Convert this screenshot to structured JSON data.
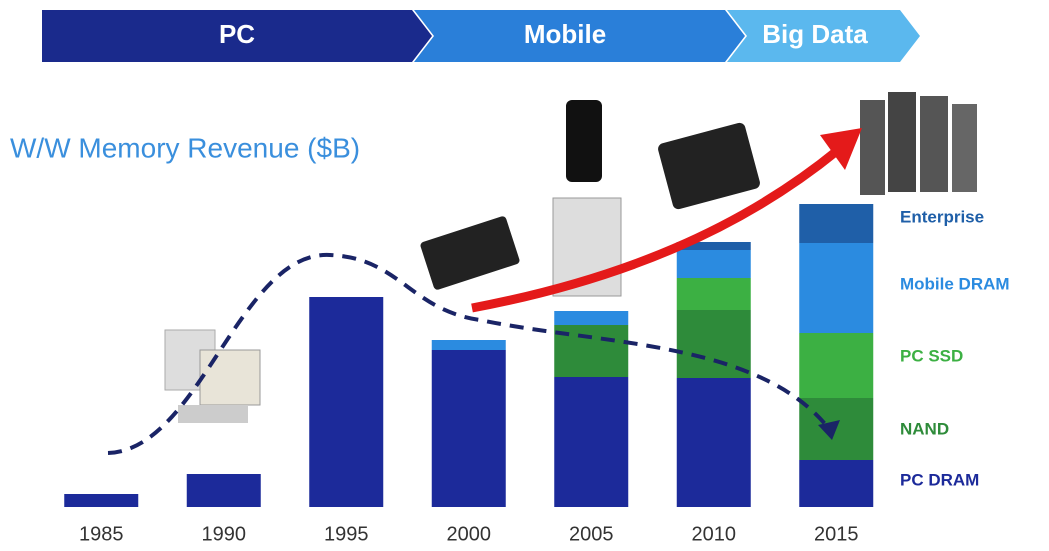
{
  "chart_data": {
    "type": "stacked-bar",
    "banner": [
      "PC",
      "Mobile",
      "Big Data"
    ],
    "title": "W/W Memory Revenue ($B)",
    "categories": [
      "1985",
      "1990",
      "1995",
      "2000",
      "2005",
      "2010",
      "2015"
    ],
    "ylim": [
      0,
      310
    ],
    "series": [
      {
        "name": "PC DRAM",
        "color": "#1c2a9a",
        "values": [
          13,
          33,
          210,
          157,
          130,
          129,
          47
        ]
      },
      {
        "name": "NAND",
        "color": "#2e8b3a",
        "values": [
          0,
          0,
          0,
          0,
          52,
          68,
          62
        ]
      },
      {
        "name": "PC SSD",
        "color": "#3cb043",
        "values": [
          0,
          0,
          0,
          0,
          0,
          32,
          65
        ]
      },
      {
        "name": "Mobile DRAM",
        "color": "#2b8be0",
        "values": [
          0,
          0,
          0,
          10,
          14,
          28,
          90
        ]
      },
      {
        "name": "Enterprise",
        "color": "#1f5fa8",
        "values": [
          0,
          0,
          0,
          0,
          0,
          8,
          39
        ]
      }
    ]
  }
}
